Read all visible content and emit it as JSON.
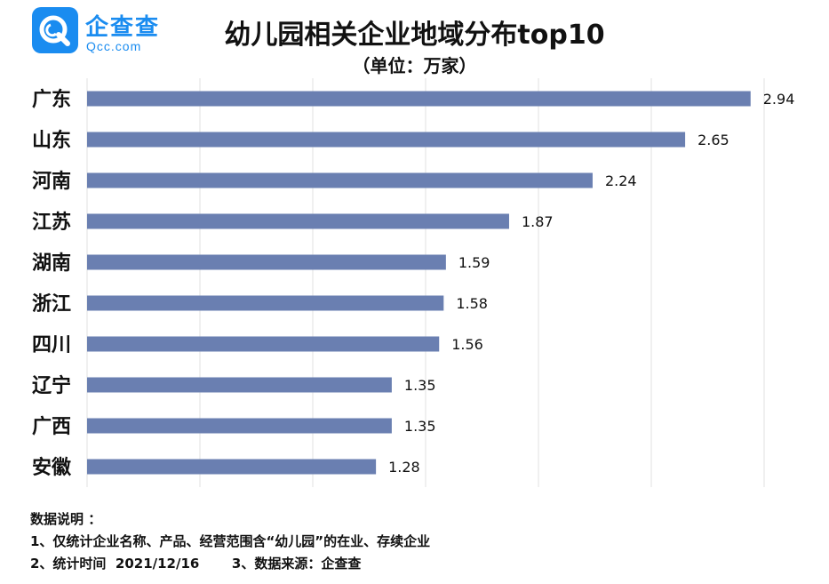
{
  "logo": {
    "name": "企查查",
    "domain": "Qcc.com"
  },
  "chart_data": {
    "type": "bar",
    "orientation": "horizontal",
    "title": "幼儿园相关企业地域分布top10",
    "subtitle": "（单位：万家）",
    "categories": [
      "广东",
      "山东",
      "河南",
      "江苏",
      "湖南",
      "浙江",
      "四川",
      "辽宁",
      "广西",
      "安徽"
    ],
    "values": [
      2.94,
      2.65,
      2.24,
      1.87,
      1.59,
      1.58,
      1.56,
      1.35,
      1.35,
      1.28
    ],
    "value_labels": [
      "2.94",
      "2.65",
      "2.24",
      "1.87",
      "1.59",
      "1.58",
      "1.56",
      "1.35",
      "1.35",
      "1.28"
    ],
    "xlim": [
      0,
      3
    ],
    "grid": "vertical",
    "bar_color": "#6a7fb1"
  },
  "notes": {
    "heading": "数据说明 ：",
    "line1": "1、仅统计企业名称、产品、经营范围含“幼儿园”的在业、存续企业",
    "line2": "2、统计时间  2021/12/16       3、数据来源：企查查"
  }
}
